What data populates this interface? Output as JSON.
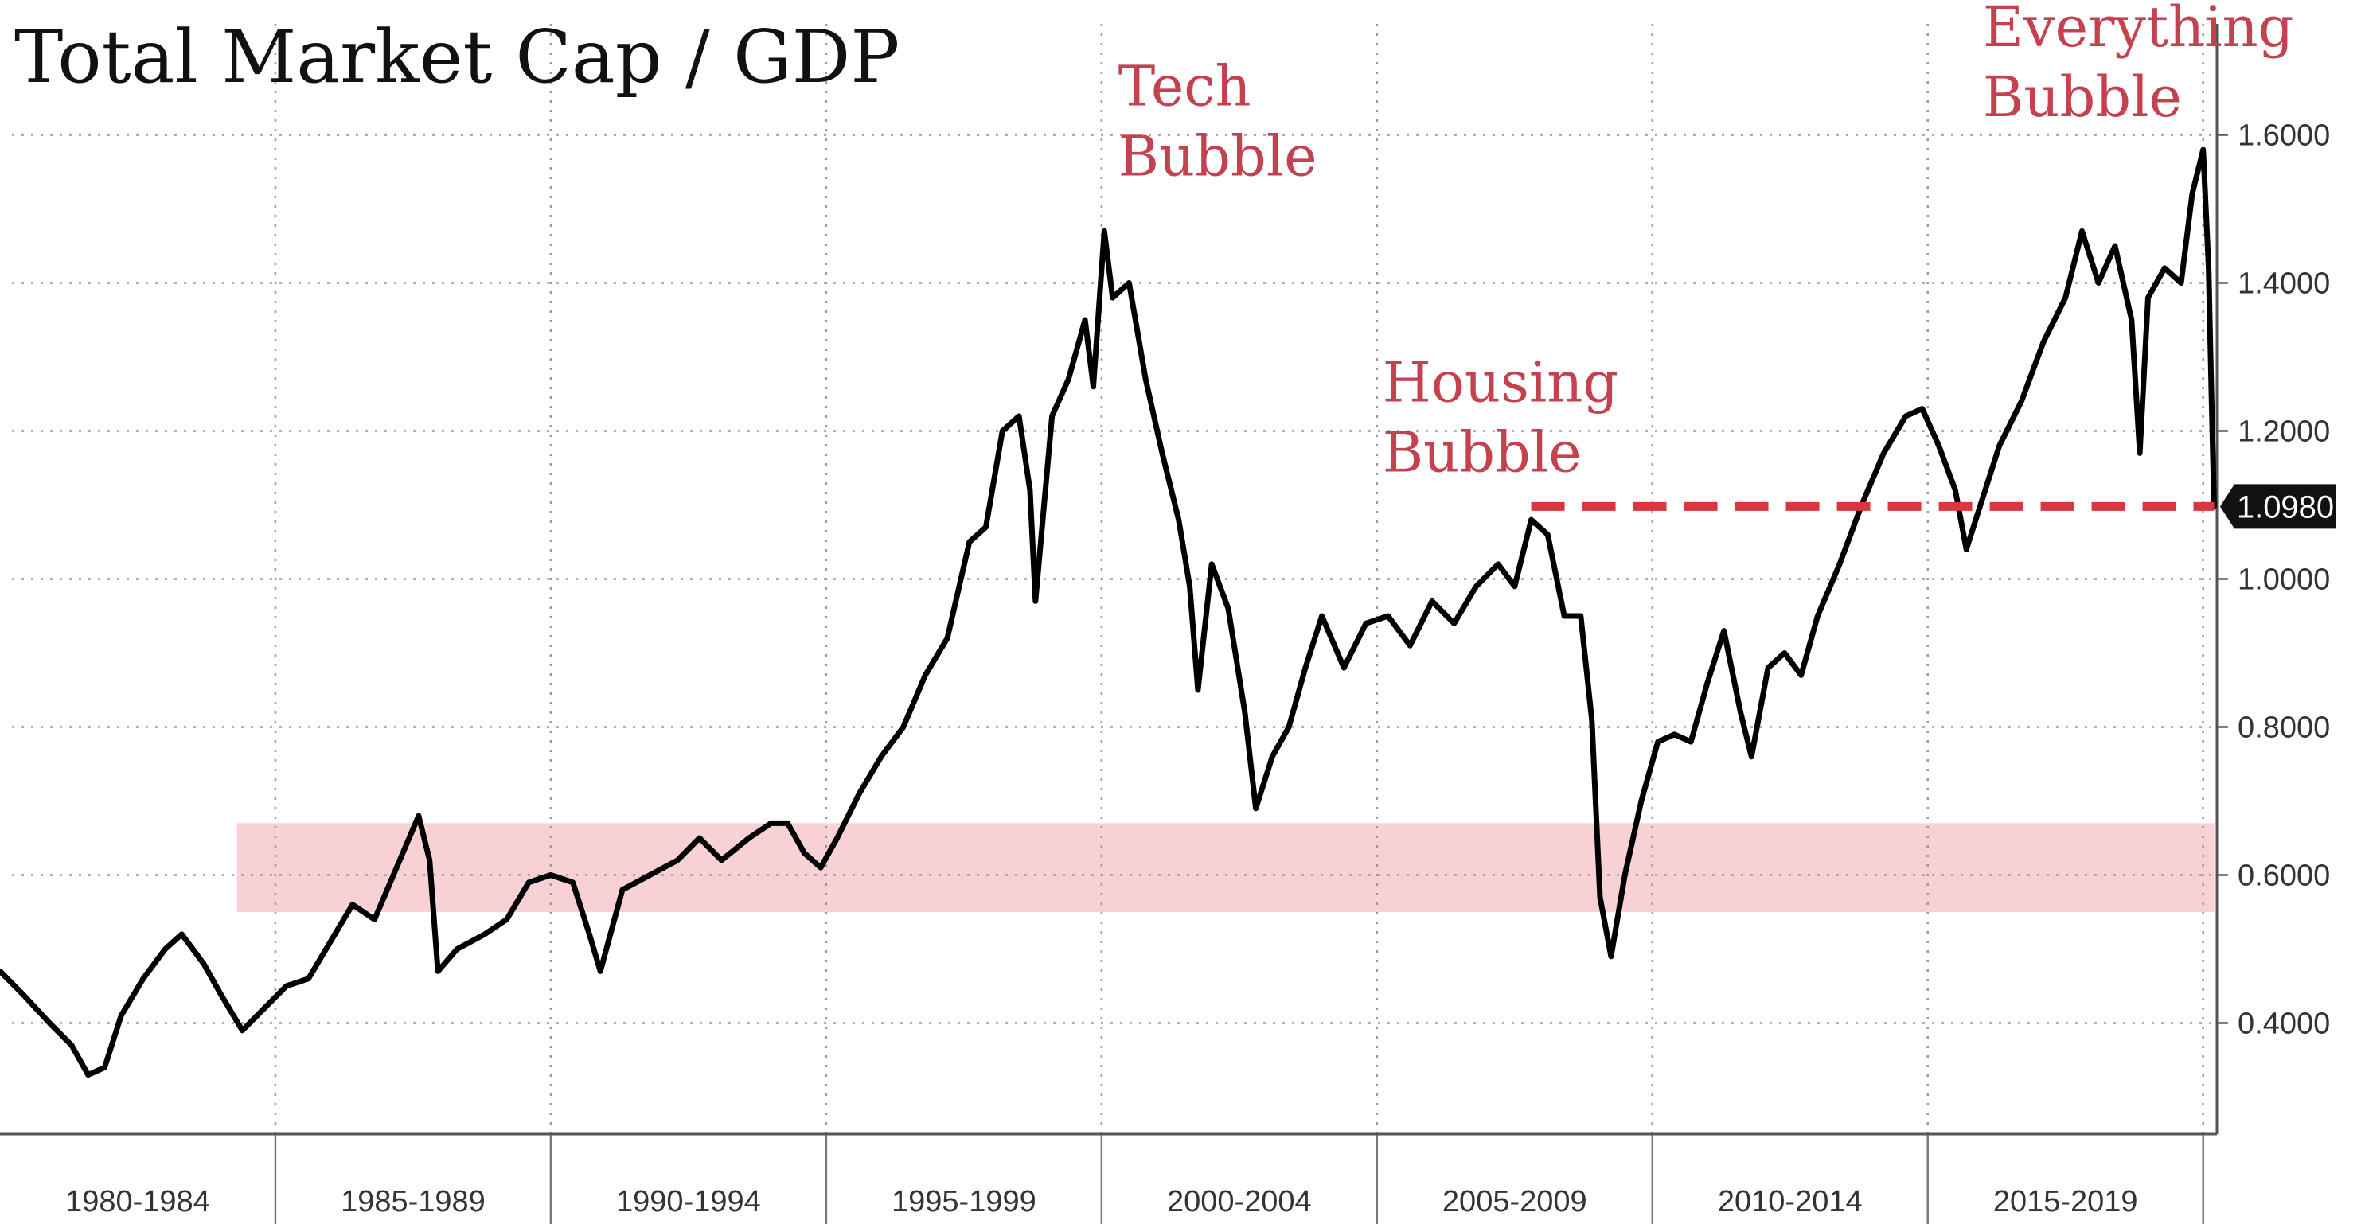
{
  "chart_data": {
    "type": "line",
    "title": "Total Market Cap / GDP",
    "xlabel": "",
    "ylabel": "",
    "x_range": [
      1980,
      2020.25
    ],
    "ylim": [
      0.25,
      1.75
    ],
    "y_ticks": [
      "0.4000",
      "0.6000",
      "0.8000",
      "1.0000",
      "1.2000",
      "1.4000",
      "1.6000"
    ],
    "y_tick_values": [
      0.4,
      0.6,
      0.8,
      1.0,
      1.2,
      1.4,
      1.6
    ],
    "x_period_labels": [
      "1980-1984",
      "1985-1989",
      "1990-1994",
      "1995-1999",
      "2000-2004",
      "2005-2009",
      "2010-2014",
      "2015-2019"
    ],
    "x_period_starts": [
      1980,
      1985,
      1990,
      1995,
      2000,
      2005,
      2010,
      2015,
      2020
    ],
    "grid": true,
    "band": {
      "y_from": 0.55,
      "y_to": 0.67,
      "x_from": 1984.3,
      "x_to": 2020.2,
      "color": "#f6c9cc"
    },
    "reference_line": {
      "y": 1.098,
      "x_from": 2007.8,
      "x_to": 2020.2,
      "color": "#d9363e"
    },
    "last_value_label": "1.0980",
    "series": [
      {
        "color": "#000000",
        "points": [
          [
            1980.0,
            0.47
          ],
          [
            1980.4,
            0.44
          ],
          [
            1980.9,
            0.4
          ],
          [
            1981.3,
            0.37
          ],
          [
            1981.6,
            0.33
          ],
          [
            1981.9,
            0.34
          ],
          [
            1982.2,
            0.41
          ],
          [
            1982.6,
            0.46
          ],
          [
            1983.0,
            0.5
          ],
          [
            1983.3,
            0.52
          ],
          [
            1983.7,
            0.48
          ],
          [
            1984.0,
            0.44
          ],
          [
            1984.4,
            0.39
          ],
          [
            1984.8,
            0.42
          ],
          [
            1985.2,
            0.45
          ],
          [
            1985.6,
            0.46
          ],
          [
            1986.0,
            0.51
          ],
          [
            1986.4,
            0.56
          ],
          [
            1986.8,
            0.54
          ],
          [
            1987.2,
            0.61
          ],
          [
            1987.6,
            0.68
          ],
          [
            1987.8,
            0.62
          ],
          [
            1987.95,
            0.47
          ],
          [
            1988.3,
            0.5
          ],
          [
            1988.8,
            0.52
          ],
          [
            1989.2,
            0.54
          ],
          [
            1989.6,
            0.59
          ],
          [
            1990.0,
            0.6
          ],
          [
            1990.4,
            0.59
          ],
          [
            1990.7,
            0.52
          ],
          [
            1990.9,
            0.47
          ],
          [
            1991.3,
            0.58
          ],
          [
            1991.8,
            0.6
          ],
          [
            1992.3,
            0.62
          ],
          [
            1992.7,
            0.65
          ],
          [
            1993.1,
            0.62
          ],
          [
            1993.6,
            0.65
          ],
          [
            1994.0,
            0.67
          ],
          [
            1994.3,
            0.67
          ],
          [
            1994.6,
            0.63
          ],
          [
            1994.9,
            0.61
          ],
          [
            1995.2,
            0.65
          ],
          [
            1995.6,
            0.71
          ],
          [
            1996.0,
            0.76
          ],
          [
            1996.4,
            0.8
          ],
          [
            1996.8,
            0.87
          ],
          [
            1997.2,
            0.92
          ],
          [
            1997.6,
            1.05
          ],
          [
            1997.9,
            1.07
          ],
          [
            1998.2,
            1.2
          ],
          [
            1998.5,
            1.22
          ],
          [
            1998.7,
            1.12
          ],
          [
            1998.8,
            0.97
          ],
          [
            1999.1,
            1.22
          ],
          [
            1999.4,
            1.27
          ],
          [
            1999.7,
            1.35
          ],
          [
            1999.85,
            1.26
          ],
          [
            2000.05,
            1.47
          ],
          [
            2000.2,
            1.38
          ],
          [
            2000.5,
            1.4
          ],
          [
            2000.8,
            1.27
          ],
          [
            2001.1,
            1.17
          ],
          [
            2001.4,
            1.08
          ],
          [
            2001.6,
            0.99
          ],
          [
            2001.75,
            0.85
          ],
          [
            2002.0,
            1.02
          ],
          [
            2002.3,
            0.96
          ],
          [
            2002.6,
            0.82
          ],
          [
            2002.8,
            0.69
          ],
          [
            2003.1,
            0.76
          ],
          [
            2003.4,
            0.8
          ],
          [
            2003.7,
            0.88
          ],
          [
            2004.0,
            0.95
          ],
          [
            2004.4,
            0.88
          ],
          [
            2004.8,
            0.94
          ],
          [
            2005.2,
            0.95
          ],
          [
            2005.6,
            0.91
          ],
          [
            2006.0,
            0.97
          ],
          [
            2006.4,
            0.94
          ],
          [
            2006.8,
            0.99
          ],
          [
            2007.2,
            1.02
          ],
          [
            2007.5,
            0.99
          ],
          [
            2007.8,
            1.08
          ],
          [
            2008.1,
            1.06
          ],
          [
            2008.4,
            0.95
          ],
          [
            2008.7,
            0.95
          ],
          [
            2008.9,
            0.81
          ],
          [
            2009.05,
            0.57
          ],
          [
            2009.25,
            0.49
          ],
          [
            2009.5,
            0.6
          ],
          [
            2009.8,
            0.7
          ],
          [
            2010.1,
            0.78
          ],
          [
            2010.4,
            0.79
          ],
          [
            2010.7,
            0.78
          ],
          [
            2011.0,
            0.86
          ],
          [
            2011.3,
            0.93
          ],
          [
            2011.6,
            0.82
          ],
          [
            2011.8,
            0.76
          ],
          [
            2012.1,
            0.88
          ],
          [
            2012.4,
            0.9
          ],
          [
            2012.7,
            0.87
          ],
          [
            2013.0,
            0.95
          ],
          [
            2013.4,
            1.02
          ],
          [
            2013.8,
            1.1
          ],
          [
            2014.2,
            1.17
          ],
          [
            2014.6,
            1.22
          ],
          [
            2014.9,
            1.23
          ],
          [
            2015.2,
            1.18
          ],
          [
            2015.5,
            1.12
          ],
          [
            2015.7,
            1.04
          ],
          [
            2016.0,
            1.11
          ],
          [
            2016.3,
            1.18
          ],
          [
            2016.7,
            1.24
          ],
          [
            2017.1,
            1.32
          ],
          [
            2017.5,
            1.38
          ],
          [
            2017.8,
            1.47
          ],
          [
            2018.1,
            1.4
          ],
          [
            2018.4,
            1.45
          ],
          [
            2018.7,
            1.35
          ],
          [
            2018.85,
            1.17
          ],
          [
            2019.0,
            1.38
          ],
          [
            2019.3,
            1.42
          ],
          [
            2019.6,
            1.4
          ],
          [
            2019.8,
            1.52
          ],
          [
            2020.0,
            1.58
          ],
          [
            2020.1,
            1.42
          ],
          [
            2020.15,
            1.25
          ],
          [
            2020.2,
            1.098
          ]
        ]
      }
    ],
    "annotations": [
      {
        "lines": [
          "Tech",
          "Bubble"
        ],
        "x": 2000.3,
        "y": 1.64
      },
      {
        "lines": [
          "Housing",
          "Bubble"
        ],
        "x": 2005.1,
        "y": 1.24
      },
      {
        "lines": [
          "Everything",
          "Bubble"
        ],
        "x": 2016.0,
        "y": 1.72
      }
    ]
  }
}
